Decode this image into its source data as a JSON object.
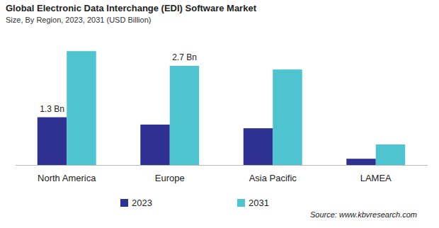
{
  "chart_data": {
    "type": "bar",
    "title": "Global Electronic Data Interchange (EDI) Software Market",
    "subtitle": "Size, By Region, 2023, 2031 (USD Billion)",
    "source": "Source: www.kbvresearch.com",
    "categories": [
      "North America",
      "Europe",
      "Asia Pacific",
      "LAMEA"
    ],
    "series": [
      {
        "name": "2023",
        "color": "#2e3192",
        "values": [
          1.3,
          1.1,
          1.0,
          0.17
        ],
        "value_labels": [
          "1.3 Bn",
          null,
          null,
          null
        ]
      },
      {
        "name": "2031",
        "color": "#4dc4cf",
        "values": [
          3.1,
          2.7,
          2.6,
          0.56
        ],
        "value_labels": [
          null,
          "2.7 Bn",
          null,
          null
        ]
      }
    ],
    "ylim": [
      0,
      3.2
    ],
    "data_labels": true,
    "tick_labels": "x",
    "legend": "bottom",
    "grid": false
  }
}
